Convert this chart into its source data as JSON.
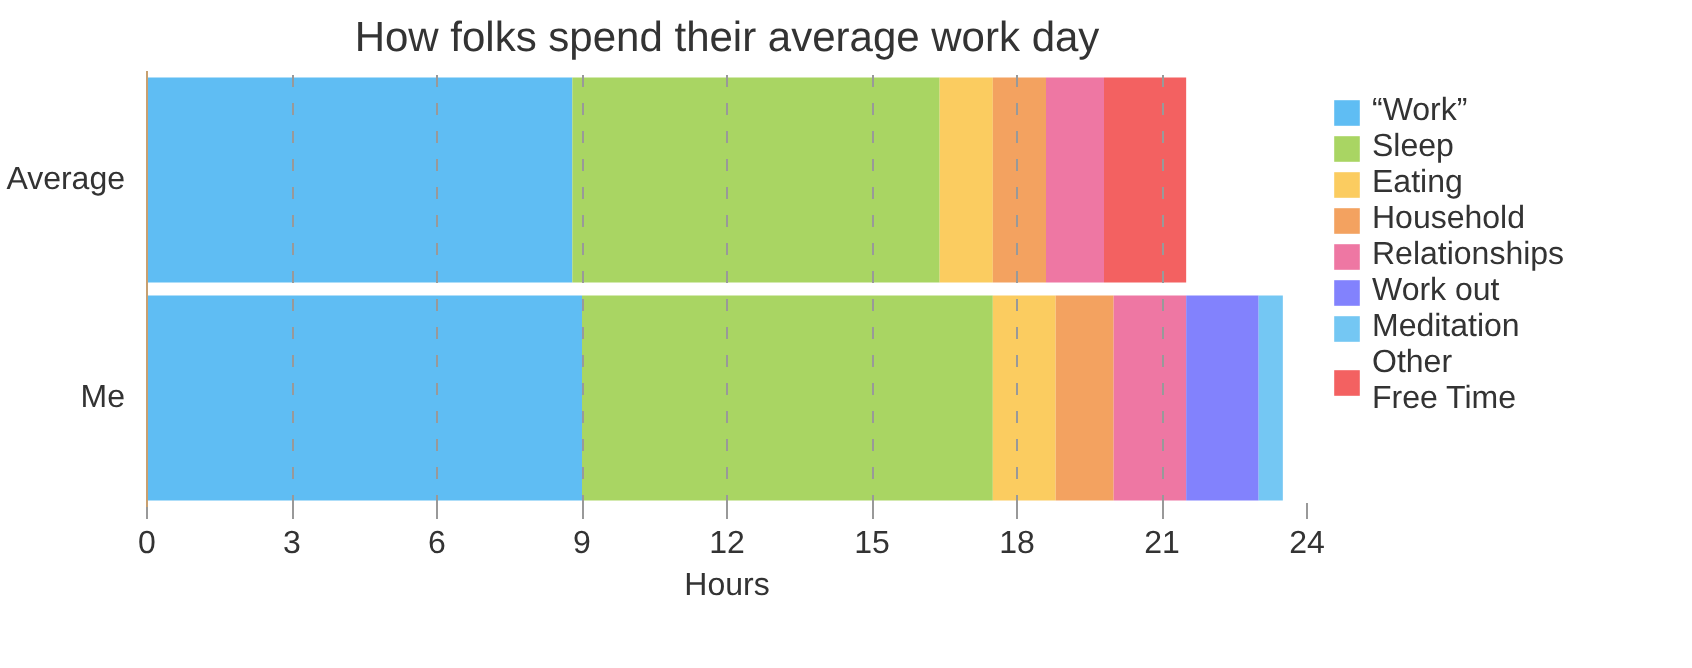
{
  "chart_data": {
    "type": "bar",
    "orientation": "horizontal",
    "stacked": true,
    "title": "How folks spend their average work day",
    "xlabel": "Hours",
    "categories": [
      "Average",
      "Me"
    ],
    "series": [
      {
        "name": "“Work”",
        "color": "#5fbdf3",
        "values": [
          8.8,
          9.0
        ]
      },
      {
        "name": "Sleep",
        "color": "#a9d563",
        "values": [
          7.6,
          8.5
        ]
      },
      {
        "name": "Eating",
        "color": "#fbcc60",
        "values": [
          1.1,
          1.3
        ]
      },
      {
        "name": "Household",
        "color": "#f3a260",
        "values": [
          1.1,
          1.2
        ]
      },
      {
        "name": "Relationships",
        "color": "#ee77a3",
        "values": [
          1.2,
          1.5
        ]
      },
      {
        "name": "Work out",
        "color": "#8282fd",
        "values": [
          null,
          1.5
        ]
      },
      {
        "name": "Meditation",
        "color": "#74c7f3",
        "values": [
          null,
          0.5
        ]
      },
      {
        "name": "Other Free Time",
        "color": "#f36161",
        "values": [
          1.7,
          null
        ]
      }
    ],
    "xlim": [
      0,
      24
    ],
    "xticks": [
      0,
      3,
      6,
      9,
      12,
      15,
      18,
      21,
      24
    ],
    "grid": "x",
    "legend": "right"
  }
}
